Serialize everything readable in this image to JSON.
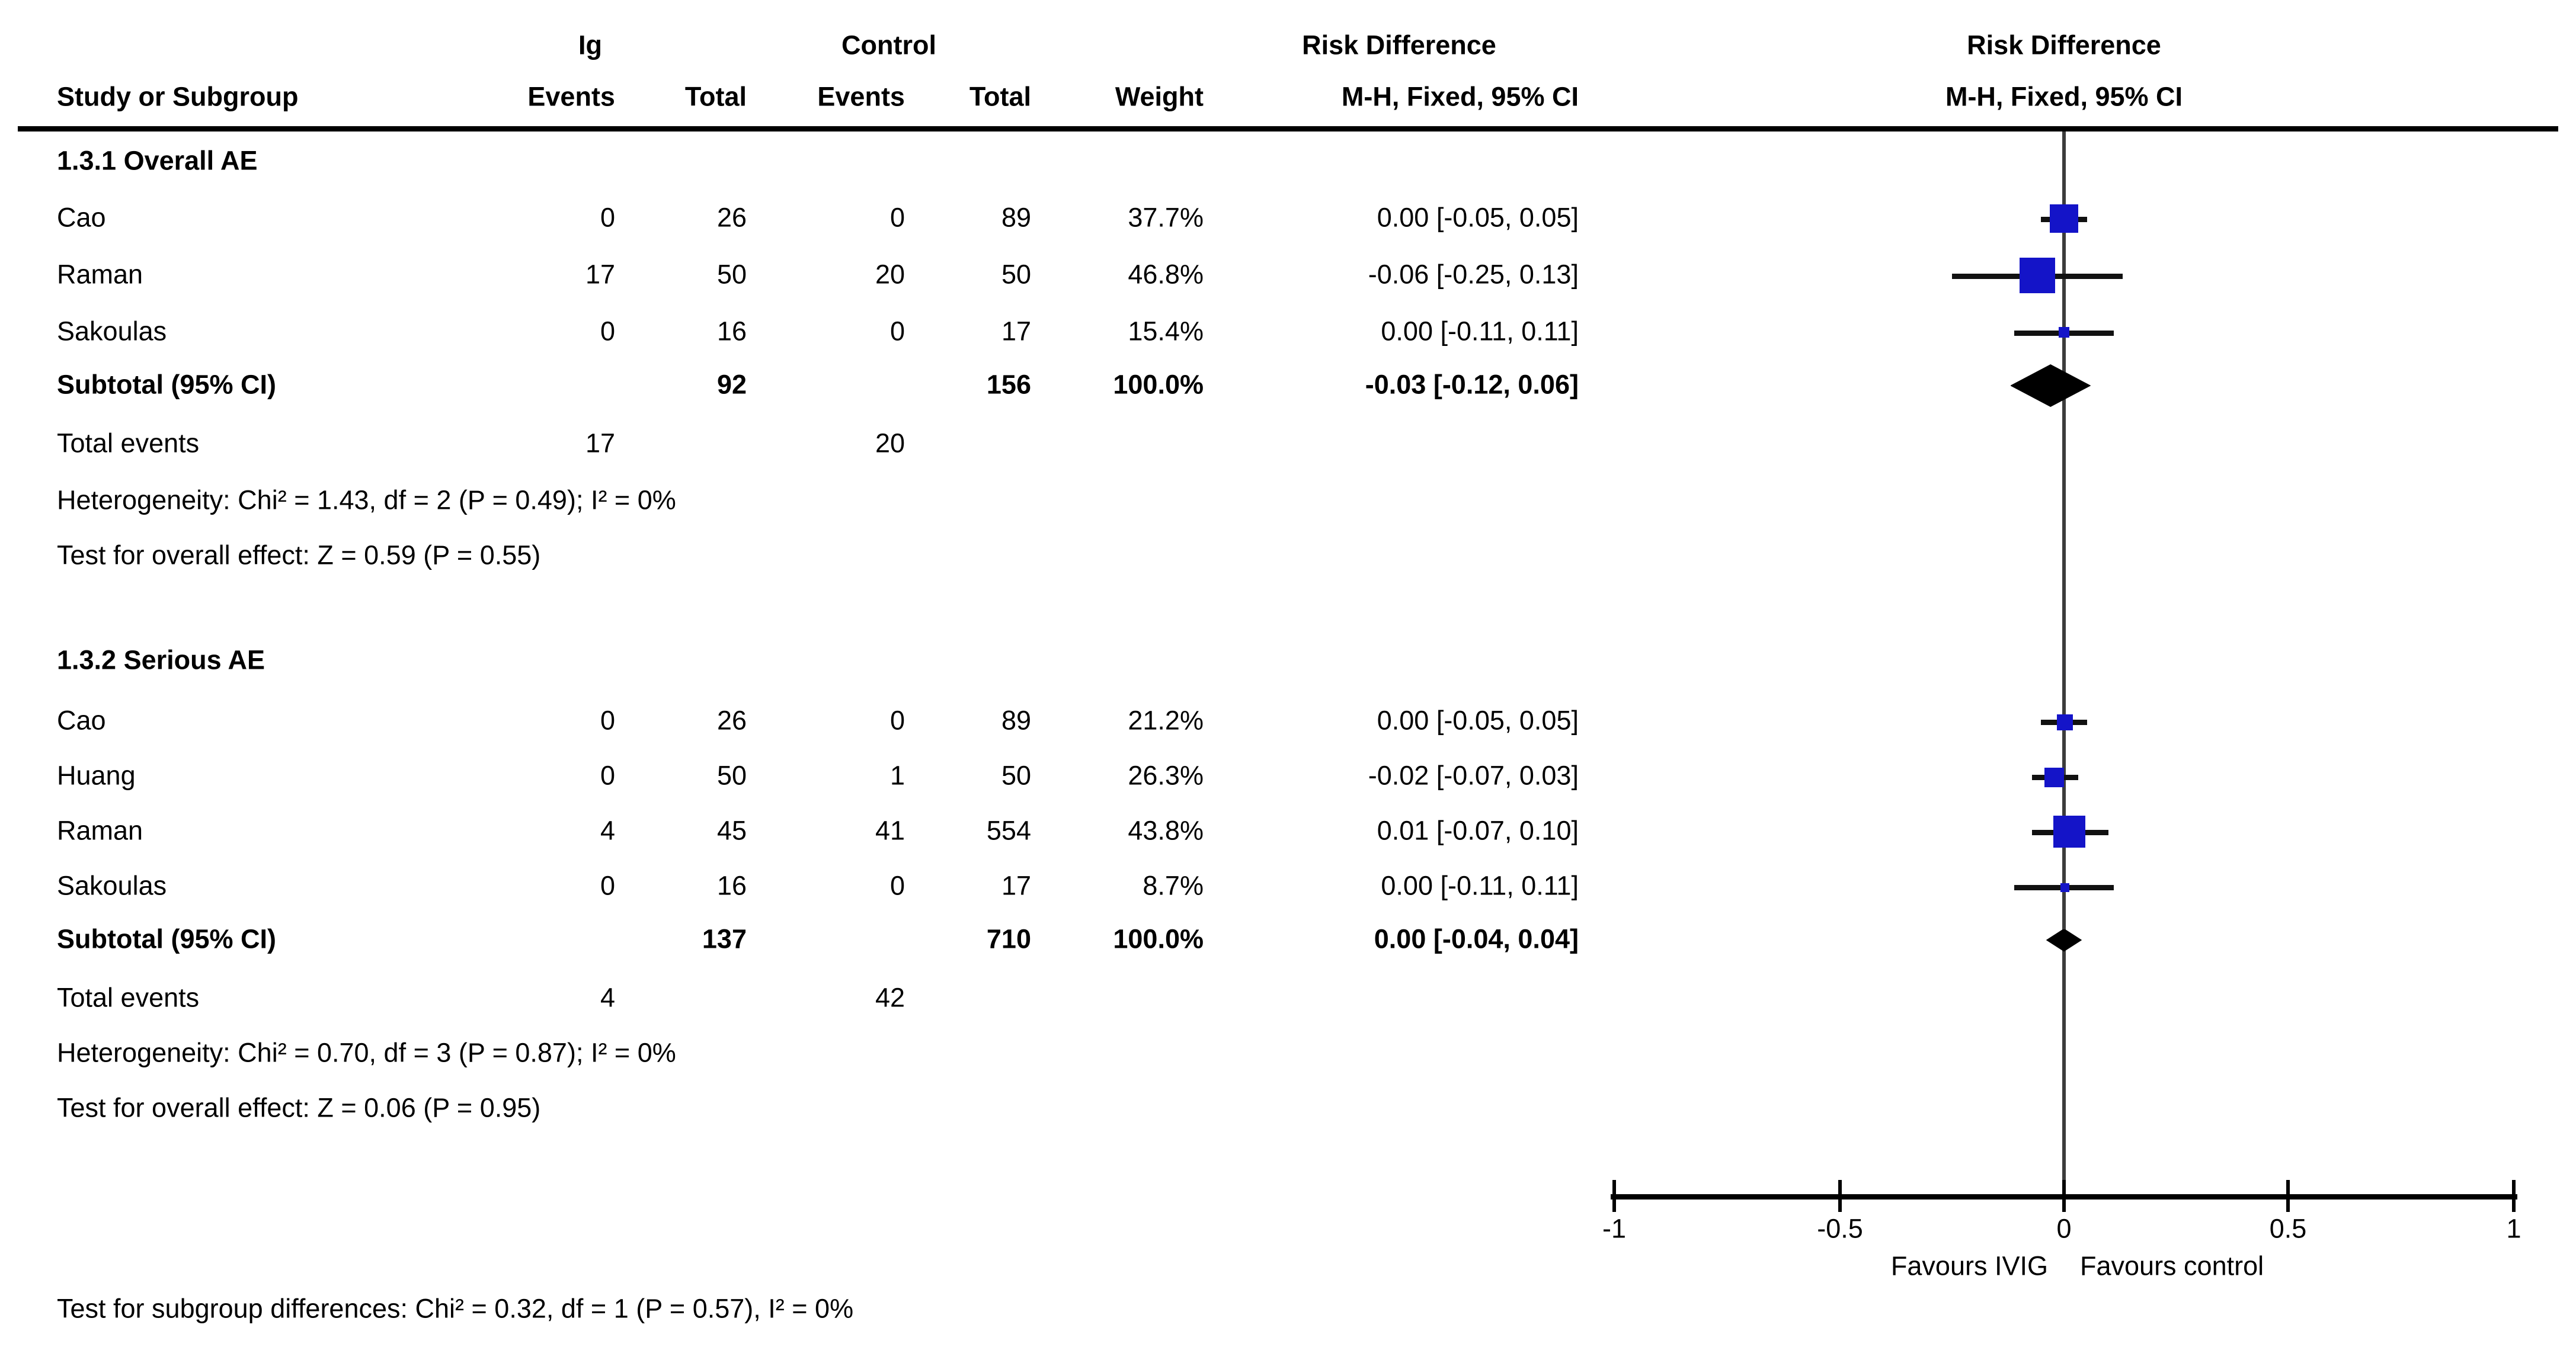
{
  "header": {
    "group1_label": "Ig",
    "group2_label": "Control",
    "effect_title": "Risk Difference",
    "method_label": "M-H, Fixed, 95% CI",
    "col_study": "Study or Subgroup",
    "col_events": "Events",
    "col_total": "Total",
    "col_weight": "Weight"
  },
  "subgroups": [
    {
      "title": "1.3.1 Overall AE",
      "studies": [
        {
          "name": "Cao",
          "ev1": "0",
          "tot1": "26",
          "ev2": "0",
          "tot2": "89",
          "weight": "37.7%",
          "weight_pct": 37.7,
          "ci": "0.00 [-0.05, 0.05]",
          "rd": 0.0,
          "lo": -0.05,
          "hi": 0.05
        },
        {
          "name": "Raman",
          "ev1": "17",
          "tot1": "50",
          "ev2": "20",
          "tot2": "50",
          "weight": "46.8%",
          "weight_pct": 46.8,
          "ci": "-0.06 [-0.25, 0.13]",
          "rd": -0.06,
          "lo": -0.25,
          "hi": 0.13
        },
        {
          "name": "Sakoulas",
          "ev1": "0",
          "tot1": "16",
          "ev2": "0",
          "tot2": "17",
          "weight": "15.4%",
          "weight_pct": 15.4,
          "ci": "0.00 [-0.11, 0.11]",
          "rd": 0.0,
          "lo": -0.11,
          "hi": 0.11
        }
      ],
      "subtotal": {
        "label": "Subtotal (95% CI)",
        "tot1": "92",
        "tot2": "156",
        "weight": "100.0%",
        "ci": "-0.03 [-0.12, 0.06]",
        "rd": -0.03,
        "lo": -0.12,
        "hi": 0.06
      },
      "total_events": {
        "label": "Total events",
        "ig": "17",
        "control": "20"
      },
      "heterogeneity": "Heterogeneity: Chi² = 1.43, df = 2 (P = 0.49); I² = 0%",
      "overall_effect": "Test for overall effect: Z = 0.59 (P = 0.55)"
    },
    {
      "title": "1.3.2 Serious AE",
      "studies": [
        {
          "name": "Cao",
          "ev1": "0",
          "tot1": "26",
          "ev2": "0",
          "tot2": "89",
          "weight": "21.2%",
          "weight_pct": 21.2,
          "ci": "0.00 [-0.05, 0.05]",
          "rd": 0.0,
          "lo": -0.05,
          "hi": 0.05
        },
        {
          "name": "Huang",
          "ev1": "0",
          "tot1": "50",
          "ev2": "1",
          "tot2": "50",
          "weight": "26.3%",
          "weight_pct": 26.3,
          "ci": "-0.02 [-0.07, 0.03]",
          "rd": -0.02,
          "lo": -0.07,
          "hi": 0.03
        },
        {
          "name": "Raman",
          "ev1": "4",
          "tot1": "45",
          "ev2": "41",
          "tot2": "554",
          "weight": "43.8%",
          "weight_pct": 43.8,
          "ci": "0.01 [-0.07, 0.10]",
          "rd": 0.01,
          "lo": -0.07,
          "hi": 0.1
        },
        {
          "name": "Sakoulas",
          "ev1": "0",
          "tot1": "16",
          "ev2": "0",
          "tot2": "17",
          "weight": "8.7%",
          "weight_pct": 8.7,
          "ci": "0.00 [-0.11, 0.11]",
          "rd": 0.0,
          "lo": -0.11,
          "hi": 0.11
        }
      ],
      "subtotal": {
        "label": "Subtotal (95% CI)",
        "tot1": "137",
        "tot2": "710",
        "weight": "100.0%",
        "ci": "0.00 [-0.04, 0.04]",
        "rd": 0.0,
        "lo": -0.04,
        "hi": 0.04
      },
      "total_events": {
        "label": "Total events",
        "ig": "4",
        "control": "42"
      },
      "heterogeneity": "Heterogeneity: Chi² = 0.70, df = 3 (P = 0.87); I² = 0%",
      "overall_effect": "Test for overall effect: Z = 0.06 (P = 0.95)"
    }
  ],
  "footer": {
    "subgroup_test": "Test for subgroup differences: Chi² = 0.32, df = 1 (P = 0.57), I² = 0%"
  },
  "axis": {
    "min": -1,
    "max": 1,
    "ticks": [
      -1,
      -0.5,
      0,
      0.5,
      1
    ],
    "tick_labels": [
      "-1",
      "-0.5",
      "0",
      "0.5",
      "1"
    ],
    "favours_left": "Favours IVIG",
    "favours_right": "Favours control"
  },
  "colors": {
    "square": "#1414C8",
    "diamond": "#000000",
    "ci_line": "#111111",
    "zero_line": "#3C3C3C",
    "axis": "#000000",
    "text": "#000000"
  },
  "chart_data": {
    "type": "scatter",
    "subtype": "forest_plot",
    "title": "Risk Difference  M-H, Fixed, 95% CI",
    "xlabel": "Risk Difference",
    "xlim": [
      -1,
      1
    ],
    "xticks": [
      -1,
      -0.5,
      0,
      0.5,
      1
    ],
    "grid": false,
    "direction_labels": {
      "left": "Favours IVIG",
      "right": "Favours control"
    },
    "groups": [
      {
        "name": "1.3.1 Overall AE",
        "points": [
          {
            "study": "Cao",
            "ig_events": 0,
            "ig_total": 26,
            "control_events": 0,
            "control_total": 89,
            "weight_pct": 37.7,
            "rd": 0.0,
            "ci95": [
              -0.05,
              0.05
            ]
          },
          {
            "study": "Raman",
            "ig_events": 17,
            "ig_total": 50,
            "control_events": 20,
            "control_total": 50,
            "weight_pct": 46.8,
            "rd": -0.06,
            "ci95": [
              -0.25,
              0.13
            ]
          },
          {
            "study": "Sakoulas",
            "ig_events": 0,
            "ig_total": 16,
            "control_events": 0,
            "control_total": 17,
            "weight_pct": 15.4,
            "rd": 0.0,
            "ci95": [
              -0.11,
              0.11
            ]
          }
        ],
        "subtotal": {
          "ig_total": 92,
          "control_total": 156,
          "weight_pct": 100.0,
          "rd": -0.03,
          "ci95": [
            -0.12,
            0.06
          ]
        },
        "total_events": {
          "ig": 17,
          "control": 20
        },
        "heterogeneity": {
          "chi2": 1.43,
          "df": 2,
          "p": 0.49,
          "i2_pct": 0
        },
        "overall_effect": {
          "z": 0.59,
          "p": 0.55
        }
      },
      {
        "name": "1.3.2 Serious AE",
        "points": [
          {
            "study": "Cao",
            "ig_events": 0,
            "ig_total": 26,
            "control_events": 0,
            "control_total": 89,
            "weight_pct": 21.2,
            "rd": 0.0,
            "ci95": [
              -0.05,
              0.05
            ]
          },
          {
            "study": "Huang",
            "ig_events": 0,
            "ig_total": 50,
            "control_events": 1,
            "control_total": 50,
            "weight_pct": 26.3,
            "rd": -0.02,
            "ci95": [
              -0.07,
              0.03
            ]
          },
          {
            "study": "Raman",
            "ig_events": 4,
            "ig_total": 45,
            "control_events": 41,
            "control_total": 554,
            "weight_pct": 43.8,
            "rd": 0.01,
            "ci95": [
              -0.07,
              0.1
            ]
          },
          {
            "study": "Sakoulas",
            "ig_events": 0,
            "ig_total": 16,
            "control_events": 0,
            "control_total": 17,
            "weight_pct": 8.7,
            "rd": 0.0,
            "ci95": [
              -0.11,
              0.11
            ]
          }
        ],
        "subtotal": {
          "ig_total": 137,
          "control_total": 710,
          "weight_pct": 100.0,
          "rd": 0.0,
          "ci95": [
            -0.04,
            0.04
          ]
        },
        "total_events": {
          "ig": 4,
          "control": 42
        },
        "heterogeneity": {
          "chi2": 0.7,
          "df": 3,
          "p": 0.87,
          "i2_pct": 0
        },
        "overall_effect": {
          "z": 0.06,
          "p": 0.95
        }
      }
    ],
    "subgroup_difference_test": {
      "chi2": 0.32,
      "df": 1,
      "p": 0.57,
      "i2_pct": 0
    }
  }
}
